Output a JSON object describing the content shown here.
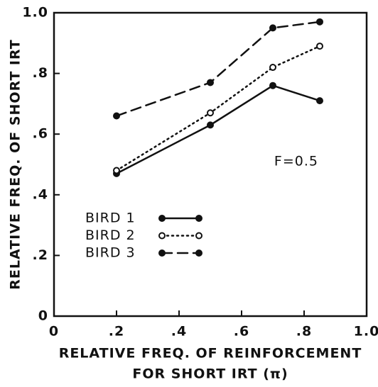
{
  "chart_data": {
    "type": "line",
    "xlabel": [
      "RELATIVE FREQ. OF REINFORCEMENT",
      "FOR SHORT IRT (π)"
    ],
    "ylabel": "RELATIVE FREQ. OF SHORT IRT",
    "annotation": "F=0.5",
    "x": [
      0.2,
      0.5,
      0.7,
      0.85
    ],
    "series": [
      {
        "name": "BIRD 1",
        "color": "#111111",
        "dash": "solid",
        "marker": "filled",
        "values": [
          0.47,
          0.63,
          0.76,
          0.71
        ]
      },
      {
        "name": "BIRD 2",
        "color": "#111111",
        "dash": "dotted",
        "marker": "open",
        "values": [
          0.48,
          0.67,
          0.82,
          0.89
        ]
      },
      {
        "name": "BIRD 3",
        "color": "#111111",
        "dash": "dashed",
        "marker": "filled",
        "values": [
          0.66,
          0.77,
          0.95,
          0.97
        ]
      }
    ],
    "xlim": [
      0,
      1
    ],
    "ylim": [
      0,
      1
    ],
    "xticks": [
      0,
      {
        "value": 0.2,
        "label": ".2"
      },
      {
        "value": 0.4,
        "label": ".4"
      },
      {
        "value": 0.6,
        "label": ".6"
      },
      {
        "value": 0.8,
        "label": ".8"
      },
      {
        "value": 1,
        "label": "1.0"
      }
    ],
    "yticks": [
      0,
      {
        "value": 0.2,
        "label": ".2"
      },
      {
        "value": 0.4,
        "label": ".4"
      },
      {
        "value": 0.6,
        "label": ".6"
      },
      {
        "value": 0.8,
        "label": ".8"
      },
      {
        "value": 1,
        "label": "1.0"
      }
    ],
    "grid": false,
    "legend": "lower left"
  }
}
